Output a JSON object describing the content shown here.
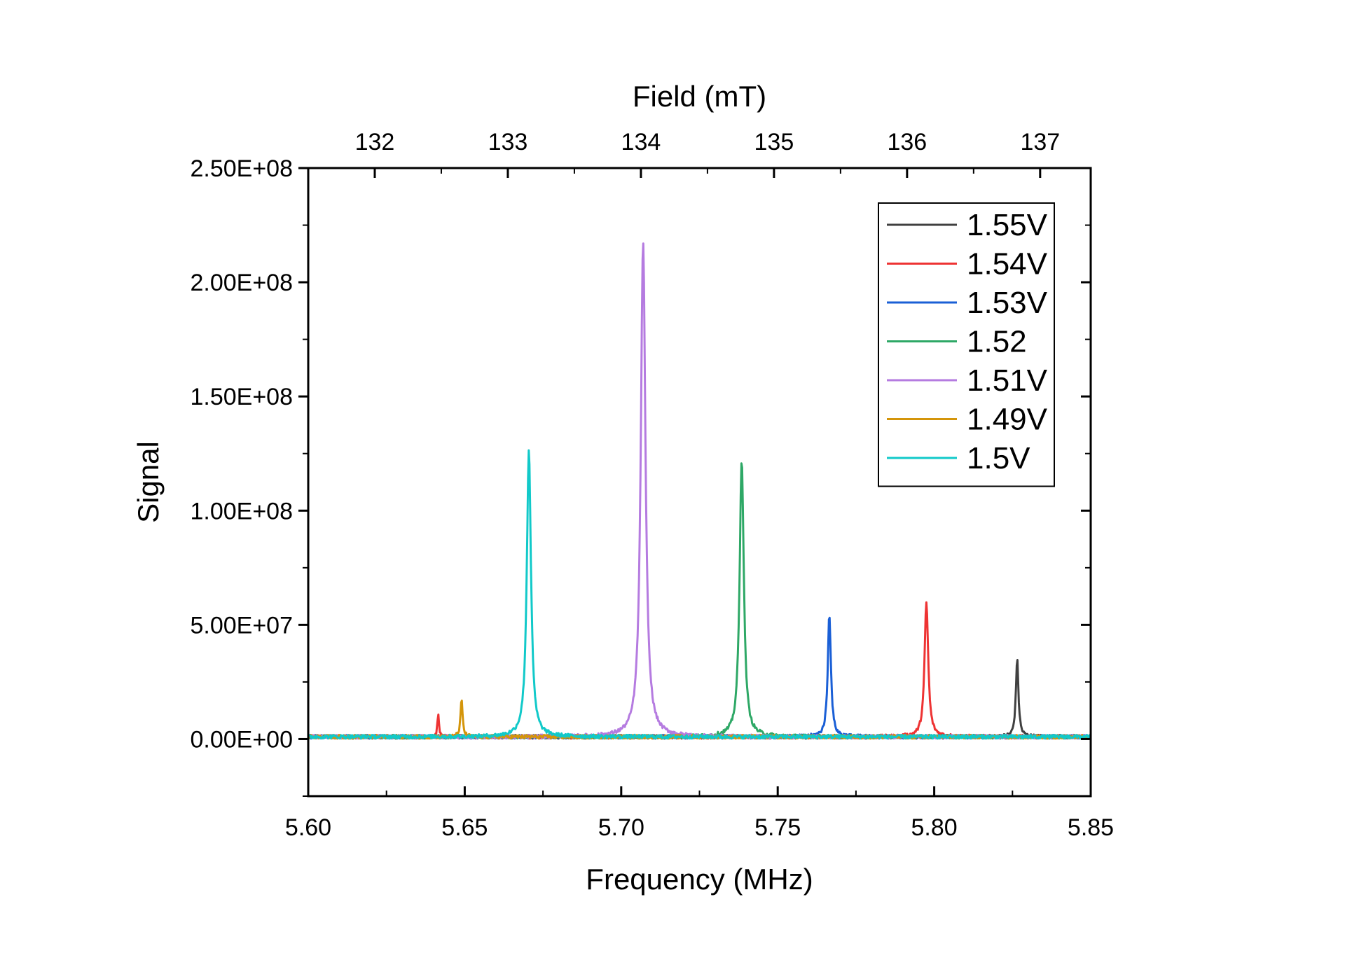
{
  "chart_data": {
    "type": "line",
    "xlabel": "Frequency (MHz)",
    "ylabel": "Signal",
    "x2label": "Field (mT)",
    "xlim": [
      5.6,
      5.85
    ],
    "ylim": [
      -25000000,
      250000000
    ],
    "x2lim": [
      131.5,
      137.38
    ],
    "xticks": [
      "5.60",
      "5.65",
      "5.70",
      "5.75",
      "5.80",
      "5.85"
    ],
    "xtick_values": [
      5.6,
      5.65,
      5.7,
      5.75,
      5.8,
      5.85
    ],
    "x2ticks": [
      "132",
      "133",
      "134",
      "135",
      "136",
      "137"
    ],
    "x2tick_values": [
      132,
      133,
      134,
      135,
      136,
      137
    ],
    "yticks": [
      "0.00E+00",
      "5.00E+07",
      "1.00E+08",
      "1.50E+08",
      "2.00E+08",
      "2.50E+08"
    ],
    "ytick_values": [
      0,
      50000000,
      100000000,
      150000000,
      200000000,
      250000000
    ],
    "grid": false,
    "legend_position": "top-right",
    "baseline": 1000000,
    "series": [
      {
        "name": "1.55V",
        "color": "#404040",
        "peaks": [
          {
            "x": 5.8265,
            "y": 35000000,
            "w": 0.0005
          }
        ]
      },
      {
        "name": "1.54V",
        "color": "#ee3333",
        "peaks": [
          {
            "x": 5.7975,
            "y": 60000000,
            "w": 0.0007
          },
          {
            "x": 5.6415,
            "y": 11000000,
            "w": 0.0003
          }
        ]
      },
      {
        "name": "1.53V",
        "color": "#1a5fd6",
        "peaks": [
          {
            "x": 5.7665,
            "y": 55000000,
            "w": 0.0006
          }
        ]
      },
      {
        "name": "1.52",
        "color": "#2ea866",
        "peaks": [
          {
            "x": 5.7385,
            "y": 123000000,
            "w": 0.0008
          }
        ]
      },
      {
        "name": "1.51V",
        "color": "#b57be0",
        "peaks": [
          {
            "x": 5.707,
            "y": 218000000,
            "w": 0.0009
          }
        ]
      },
      {
        "name": "1.49V",
        "color": "#d4950a",
        "peaks": [
          {
            "x": 5.649,
            "y": 17000000,
            "w": 0.0004
          }
        ]
      },
      {
        "name": "1.5V",
        "color": "#11c9c9",
        "peaks": [
          {
            "x": 5.6705,
            "y": 127000000,
            "w": 0.0008
          }
        ]
      }
    ]
  }
}
